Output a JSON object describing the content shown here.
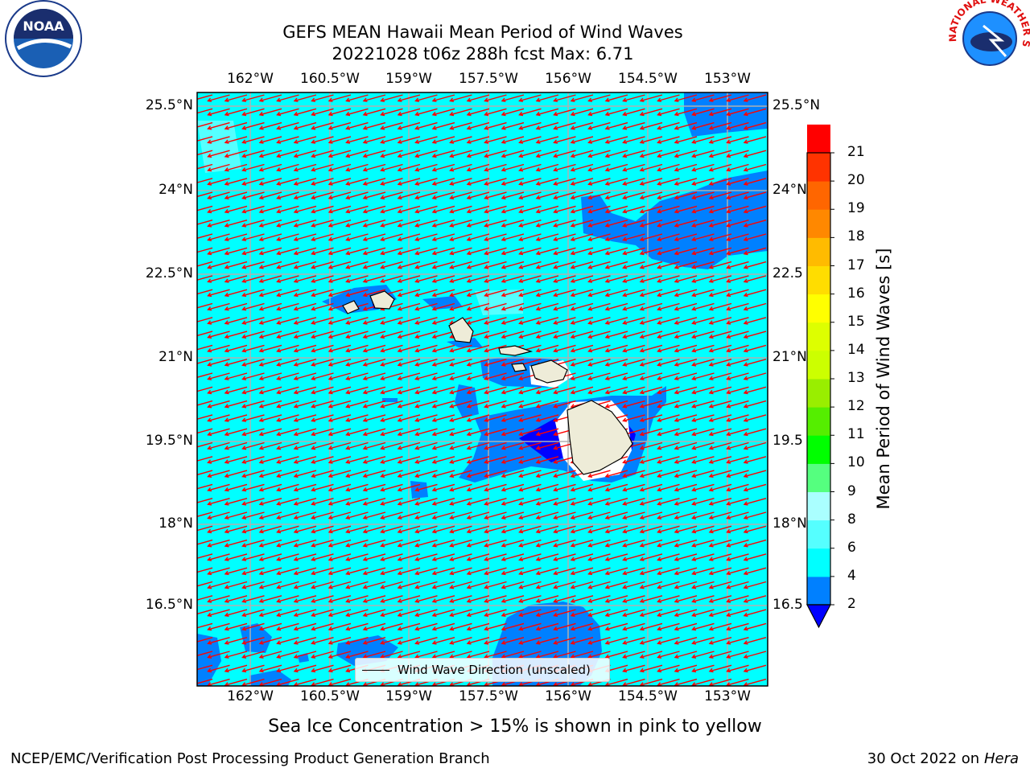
{
  "header": {
    "title_line1": "GEFS MEAN Hawaii Mean Period of Wind Waves",
    "title_line2": "20221028 t06z 288h fcst   Max: 6.71"
  },
  "logos": {
    "noaa_text": "NOAA",
    "nws_text": "NATIONAL WEATHER SERVICE"
  },
  "map": {
    "lon_labels": [
      "162°W",
      "160.5°W",
      "159°W",
      "157.5°W",
      "156°W",
      "154.5°W",
      "153°W"
    ],
    "lat_labels": [
      "25.5°N",
      "24°N",
      "22.5°N",
      "21°N",
      "19.5°N",
      "18°N",
      "16.5°N"
    ],
    "lat_labels_right": [
      "25.5°N",
      "24°N",
      "22.5",
      "21°N",
      "19.5",
      "18°N",
      "16.5"
    ],
    "legend_label": "Wind Wave Direction (unscaled)",
    "background_color": "#00ffff",
    "lower_period_color": "#0080ff",
    "lowest_period_color": "#0000ff",
    "arrow_color": "#ff0000",
    "land_color": "#eeecd8"
  },
  "colorbar": {
    "label": "Mean Period of Wind Waves [s]",
    "ticks": [
      "2",
      "4",
      "6",
      "8",
      "9",
      "10",
      "11",
      "12",
      "13",
      "14",
      "15",
      "16",
      "17",
      "18",
      "19",
      "20",
      "21"
    ],
    "colors": [
      "#0080ff",
      "#00ffff",
      "#55ffff",
      "#aaffff",
      "#55ff7f",
      "#00ff00",
      "#55ee00",
      "#99ee00",
      "#ccff00",
      "#ddff00",
      "#ffff00",
      "#ffdd00",
      "#ffbb00",
      "#ff8800",
      "#ff6600",
      "#ff3300",
      "#ff0000"
    ],
    "extend_color": "#0000ff"
  },
  "caption": "Sea Ice Concentration > 15% is shown in pink to yellow",
  "footer": {
    "left": "NCEP/EMC/Verification Post Processing Product Generation Branch",
    "right_date": "30 Oct 2022 on ",
    "right_machine": "Hera"
  }
}
